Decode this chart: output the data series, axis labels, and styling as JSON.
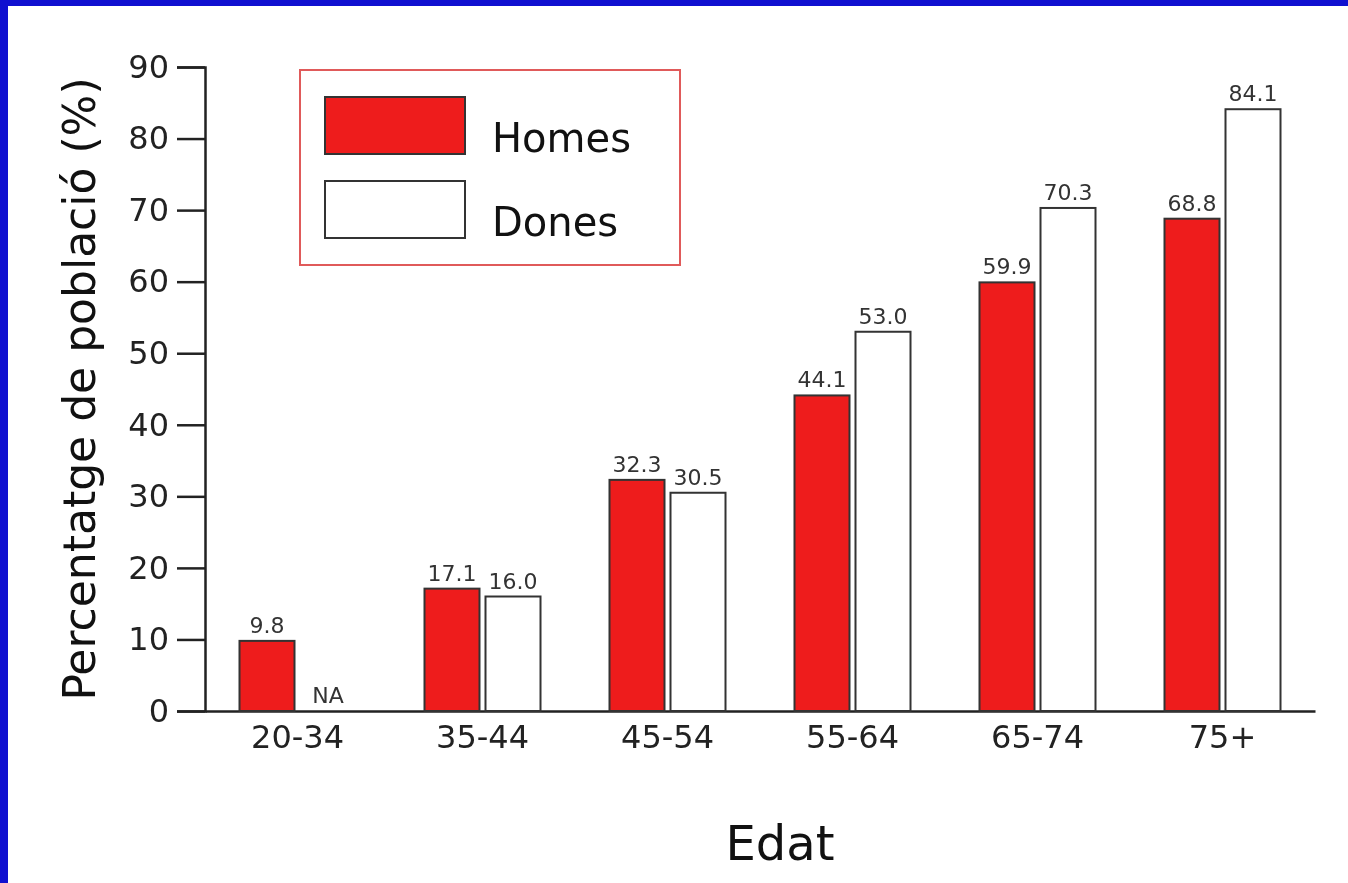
{
  "chart_data": {
    "type": "bar",
    "xlabel": "Edat",
    "ylabel": "Percentatge de població (%)",
    "categories": [
      "20-34",
      "35-44",
      "45-54",
      "55-64",
      "65-74",
      "75+"
    ],
    "series": [
      {
        "name": "Homes",
        "color": "#ee1c1c",
        "values": [
          9.8,
          17.1,
          32.3,
          44.1,
          59.9,
          68.8
        ],
        "value_labels": [
          "9.8",
          "17.1",
          "32.3",
          "44.1",
          "59.9",
          "68.8"
        ]
      },
      {
        "name": "Dones",
        "color": "#ffffff",
        "values": [
          null,
          16.0,
          30.5,
          53.0,
          70.3,
          84.1
        ],
        "value_labels": [
          "NA",
          "16.0",
          "30.5",
          "53.0",
          "70.3",
          "84.1"
        ]
      }
    ],
    "ylim": [
      0,
      90
    ],
    "yticks": [
      0,
      10,
      20,
      30,
      40,
      50,
      60,
      70,
      80,
      90
    ],
    "grid": false,
    "legend": "top left"
  }
}
